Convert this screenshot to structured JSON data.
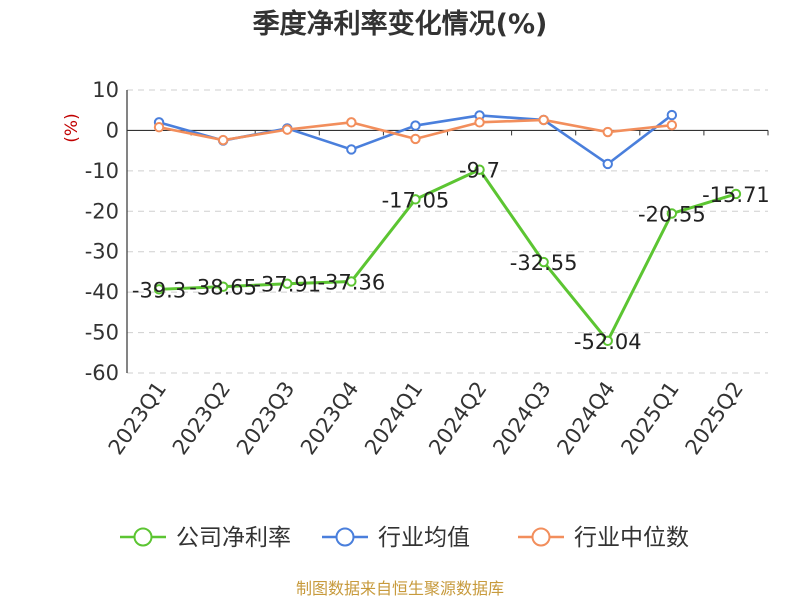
{
  "chart_data": {
    "type": "line",
    "title": "季度净利率变化情况(%)",
    "ylabel": "(%)",
    "xlabel": "",
    "ylim": [
      -60,
      10
    ],
    "yticks": [
      10,
      0,
      -10,
      -20,
      -30,
      -40,
      -50,
      -60
    ],
    "grid": true,
    "legend_position": "bottom",
    "categories": [
      "2023Q1",
      "2023Q2",
      "2023Q3",
      "2023Q4",
      "2024Q1",
      "2024Q2",
      "2024Q3",
      "2024Q4",
      "2025Q1",
      "2025Q2"
    ],
    "series": [
      {
        "name": "公司净利率",
        "color": "#5cc532",
        "values": [
          -39.3,
          -38.65,
          -37.91,
          -37.36,
          -17.05,
          -9.7,
          -32.55,
          -52.04,
          -20.55,
          -15.71
        ],
        "labels": [
          "-39.3",
          "-38.65",
          "-37.91",
          "-37.36",
          "-17.05",
          "-9.7",
          "-32.55",
          "-52.04",
          "-20.55",
          "-15.71"
        ]
      },
      {
        "name": "行业均值",
        "color": "#4a7fdc",
        "values": [
          2.0,
          -2.5,
          0.5,
          -4.7,
          1.2,
          3.7,
          2.6,
          -8.3,
          3.8,
          null
        ]
      },
      {
        "name": "行业中位数",
        "color": "#f28e5c",
        "values": [
          0.8,
          -2.4,
          0.2,
          2.0,
          -2.1,
          2.0,
          2.6,
          -0.4,
          1.3,
          null
        ]
      }
    ]
  },
  "source_note": "制图数据来自恒生聚源数据库"
}
